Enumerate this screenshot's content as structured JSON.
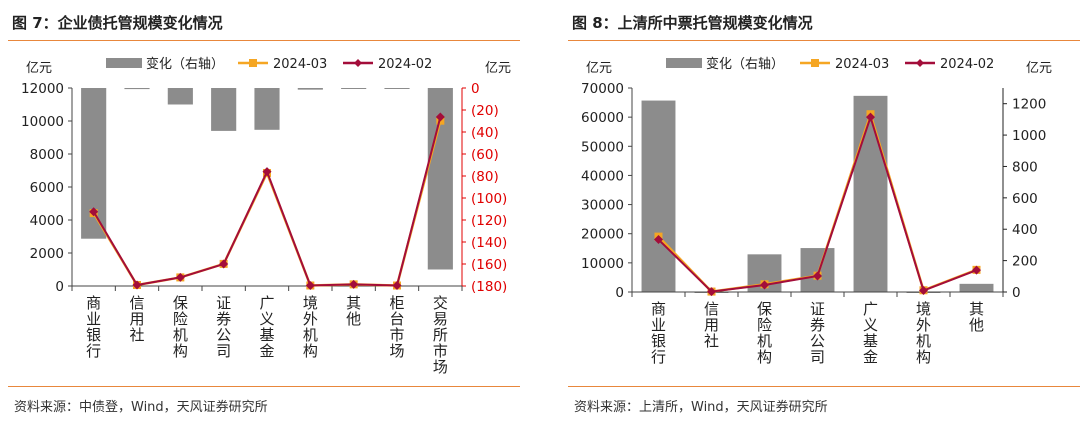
{
  "colors": {
    "accent_rule": "#e8873c",
    "bar": "#8c8c8c",
    "series_2024_03": "#f5a623",
    "series_2024_02": "#a30d3a",
    "right_axis_left_chart": "#e00000"
  },
  "figures": [
    {
      "title": "图 7：企业债托管规模变化情况",
      "source": "资料来源：中债登，Wind，天风证券研究所"
    },
    {
      "title": "图 8：上清所中票托管规模变化情况",
      "source": "资料来源：上清所，Wind，天风证券研究所"
    }
  ],
  "chart_data": [
    {
      "type": "bar+line",
      "left_unit": "亿元",
      "right_unit": "亿元",
      "legend": [
        "变化（右轴）",
        "2024-03",
        "2024-02"
      ],
      "legend_placement": "top",
      "categories": [
        "商业银行",
        "信用社",
        "保险机构",
        "证券公司",
        "广义基金",
        "境外机构",
        "其他",
        "柜台市场",
        "交易所市场"
      ],
      "left_axis": {
        "min": 0,
        "max": 12000,
        "ticks": [
          "0",
          "2000",
          "4000",
          "6000",
          "8000",
          "10000",
          "12000"
        ]
      },
      "right_axis": {
        "min": -180,
        "max": 0,
        "ticks": [
          "(180)",
          "(160)",
          "(140)",
          "(120)",
          "(100)",
          "(80)",
          "(60)",
          "(40)",
          "(20)",
          "0"
        ],
        "reversed": true
      },
      "bars_change_right_axis": [
        -137,
        -1,
        -15,
        -39,
        -38,
        -1.5,
        -0.5,
        -0.5,
        -165
      ],
      "series": [
        {
          "name": "2024-03",
          "values": [
            4420,
            60,
            520,
            1340,
            6850,
            30,
            100,
            30,
            10020
          ]
        },
        {
          "name": "2024-02",
          "values": [
            4500,
            60,
            520,
            1330,
            6930,
            30,
            100,
            30,
            10240
          ]
        }
      ],
      "grid": false
    },
    {
      "type": "bar+line",
      "left_unit": "亿元",
      "right_unit": "亿元",
      "legend": [
        "变化（右轴）",
        "2024-03",
        "2024-02"
      ],
      "legend_placement": "top",
      "categories": [
        "商业银行",
        "信用社",
        "保险机构",
        "证券公司",
        "广义基金",
        "境外机构",
        "其他"
      ],
      "left_axis": {
        "min": 0,
        "max": 70000,
        "ticks": [
          "0",
          "10000",
          "20000",
          "30000",
          "40000",
          "50000",
          "60000",
          "70000"
        ]
      },
      "right_axis": {
        "min": 0,
        "max": 1300,
        "ticks": [
          "0",
          "200",
          "400",
          "600",
          "800",
          "1000",
          "1200"
        ]
      },
      "bars_change_right_axis": [
        1220,
        0,
        240,
        280,
        1250,
        0,
        52
      ],
      "series": [
        {
          "name": "2024-03",
          "values": [
            19000,
            150,
            2650,
            5600,
            61000,
            600,
            7600
          ]
        },
        {
          "name": "2024-02",
          "values": [
            18000,
            150,
            2400,
            5500,
            60000,
            500,
            7500
          ]
        }
      ],
      "grid": false
    }
  ]
}
